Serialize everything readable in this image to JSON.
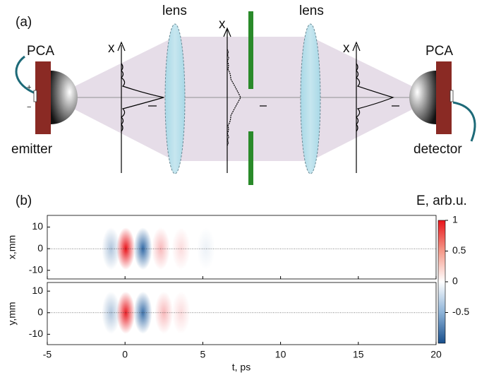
{
  "panel_a": {
    "label": "(a)",
    "emitter": {
      "device": "PCA",
      "caption": "emitter",
      "plus": "+",
      "minus": "−"
    },
    "detector": {
      "device": "PCA",
      "caption": "detector"
    },
    "lens_left": "lens",
    "lens_right": "lens",
    "axis_labels": [
      "x",
      "x",
      "x"
    ]
  },
  "panel_b": {
    "label": "(b)",
    "colorbar": {
      "title": "E, arb.u.",
      "clim": [
        -1,
        1
      ],
      "ticks": [
        1,
        0.5,
        0,
        -0.5
      ]
    },
    "x_axis": {
      "label": "t, ps",
      "xlim": [
        -5,
        20
      ],
      "xticks": [
        -5,
        0,
        5,
        10,
        15,
        20
      ]
    },
    "plots": [
      {
        "ylabel": "x,mm",
        "ylim": [
          -14,
          15.4
        ],
        "yticks": [
          10,
          0,
          -10
        ],
        "pulses": [
          {
            "t": -0.9,
            "E": -0.35
          },
          {
            "t": 0.05,
            "E": 1
          },
          {
            "t": 1.15,
            "E": -0.9
          },
          {
            "t": 2.3,
            "E": 0.3
          },
          {
            "t": 3.6,
            "E": 0.15
          },
          {
            "t": 5.2,
            "E": -0.08
          }
        ]
      },
      {
        "ylabel": "y,mm",
        "ylim": [
          -14.8,
          14
        ],
        "yticks": [
          10,
          0,
          -10
        ],
        "pulses": [
          {
            "t": -0.9,
            "E": -0.35
          },
          {
            "t": 0.05,
            "E": 0.95
          },
          {
            "t": 1.15,
            "E": -0.85
          },
          {
            "t": 2.5,
            "E": 0.3
          },
          {
            "t": 3.6,
            "E": 0.15
          }
        ]
      }
    ]
  }
}
